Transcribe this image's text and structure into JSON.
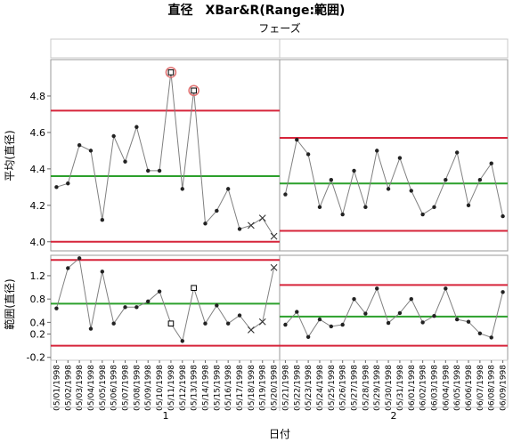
{
  "title": "直径　XBar&R(Range:範囲)",
  "phase_header": "フェーズ",
  "phases": [
    "1",
    "2"
  ],
  "group_labels": [
    "1",
    "2"
  ],
  "x_axis_label": "日付",
  "colors": {
    "limit": "#d6243a",
    "center": "#2ca02c",
    "series": "#808080",
    "point": "#222222",
    "circle": "#e07070"
  },
  "chart_data": [
    {
      "type": "line",
      "ylabel": "平均(直径)",
      "ylim": [
        3.95,
        5.0
      ],
      "yticks": [
        4.0,
        4.2,
        4.4,
        4.6,
        4.8
      ],
      "ytick_labels": [
        "4.0",
        "4.2",
        "4.4",
        "4.6",
        "4.8"
      ],
      "phases": [
        {
          "name": "1",
          "ucl": 4.72,
          "center": 4.36,
          "lcl": 4.0,
          "x": [
            "05/01/1998",
            "05/02/1998",
            "05/03/1998",
            "05/04/1998",
            "05/05/1998",
            "05/06/1998",
            "05/07/1998",
            "05/08/1998",
            "05/09/1998",
            "05/10/1998",
            "05/11/1998",
            "05/12/1998",
            "05/13/1998",
            "05/14/1998",
            "05/15/1998",
            "05/16/1998",
            "05/17/1998",
            "05/18/1998",
            "05/19/1998",
            "05/20/1998"
          ],
          "values": [
            4.3,
            4.32,
            4.53,
            4.5,
            4.12,
            4.58,
            4.44,
            4.63,
            4.39,
            4.39,
            4.93,
            4.29,
            4.83,
            4.1,
            4.17,
            4.29,
            4.07,
            4.09,
            4.13,
            4.03
          ],
          "markers": [
            "dot",
            "dot",
            "dot",
            "dot",
            "dot",
            "dot",
            "dot",
            "dot",
            "dot",
            "dot",
            "square-circled",
            "dot",
            "square-circled",
            "dot",
            "dot",
            "dot",
            "dot",
            "x",
            "x",
            "x"
          ]
        },
        {
          "name": "2",
          "ucl": 4.57,
          "center": 4.32,
          "lcl": 4.06,
          "x": [
            "05/21/1998",
            "05/22/1998",
            "05/23/1998",
            "05/24/1998",
            "05/25/1998",
            "05/26/1998",
            "05/27/1998",
            "05/28/1998",
            "05/29/1998",
            "05/30/1998",
            "05/31/1998",
            "06/01/1998",
            "06/02/1998",
            "06/03/1998",
            "06/04/1998",
            "06/05/1998",
            "06/06/1998",
            "06/07/1998",
            "06/08/1998",
            "06/09/1998"
          ],
          "values": [
            4.26,
            4.56,
            4.48,
            4.19,
            4.34,
            4.15,
            4.39,
            4.19,
            4.5,
            4.29,
            4.46,
            4.28,
            4.15,
            4.19,
            4.34,
            4.49,
            4.2,
            4.34,
            4.43,
            4.14
          ],
          "markers": [
            "dot",
            "dot",
            "dot",
            "dot",
            "dot",
            "dot",
            "dot",
            "dot",
            "dot",
            "dot",
            "dot",
            "dot",
            "dot",
            "dot",
            "dot",
            "dot",
            "dot",
            "dot",
            "dot",
            "dot"
          ]
        }
      ]
    },
    {
      "type": "line",
      "ylabel": "範囲(直径)",
      "ylim": [
        -0.25,
        1.55
      ],
      "yticks": [
        -0.2,
        0.2,
        0.4,
        0.8,
        1.2
      ],
      "ytick_labels": [
        "-0.2",
        "0.2",
        "0.4",
        "0.8",
        "1.2"
      ],
      "phases": [
        {
          "name": "1",
          "ucl": 1.47,
          "center": 0.72,
          "lcl": 0.0,
          "values": [
            0.64,
            1.33,
            1.5,
            0.29,
            1.27,
            0.38,
            0.66,
            0.66,
            0.76,
            0.93,
            0.38,
            0.08,
            0.99,
            0.38,
            0.69,
            0.38,
            0.52,
            0.27,
            0.41,
            1.34
          ],
          "markers": [
            "dot",
            "dot",
            "dot",
            "dot",
            "dot",
            "dot",
            "dot",
            "dot",
            "dot",
            "dot",
            "square",
            "dot",
            "square",
            "dot",
            "dot",
            "dot",
            "dot",
            "x",
            "x",
            "x"
          ]
        },
        {
          "name": "2",
          "ucl": 1.04,
          "center": 0.5,
          "lcl": 0.0,
          "values": [
            0.36,
            0.58,
            0.15,
            0.45,
            0.33,
            0.36,
            0.8,
            0.55,
            0.98,
            0.39,
            0.56,
            0.8,
            0.4,
            0.51,
            0.98,
            0.45,
            0.41,
            0.21,
            0.14,
            0.92
          ],
          "markers": [
            "dot",
            "dot",
            "dot",
            "dot",
            "dot",
            "dot",
            "dot",
            "dot",
            "dot",
            "dot",
            "dot",
            "dot",
            "dot",
            "dot",
            "dot",
            "dot",
            "dot",
            "dot",
            "dot",
            "dot"
          ]
        }
      ]
    }
  ]
}
